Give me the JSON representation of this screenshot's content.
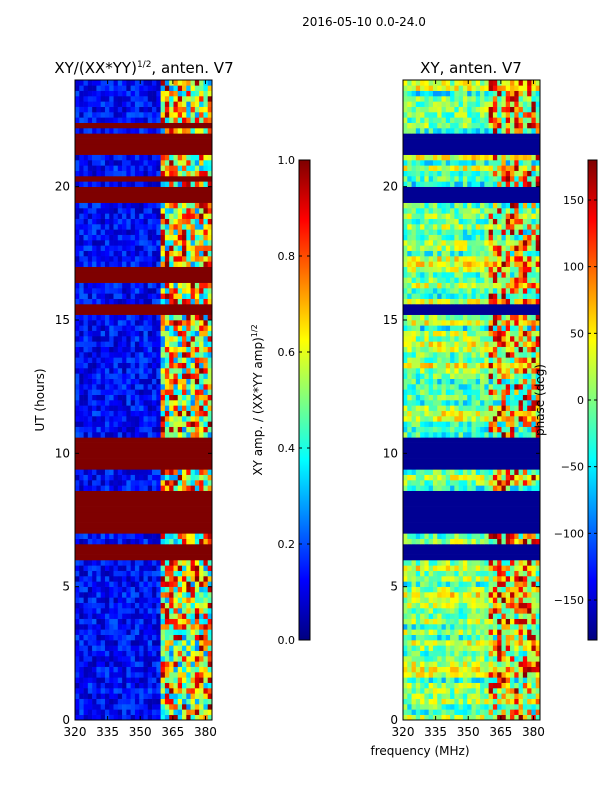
{
  "suptitle": "2016-05-10 0.0-24.0",
  "common_xlabel": "frequency (MHz)",
  "colors": {
    "jet": [
      "#00007f",
      "#0000ff",
      "#007fff",
      "#00ffff",
      "#7fff7f",
      "#ffff00",
      "#ff7f00",
      "#ff0000",
      "#7f0000"
    ],
    "frame": "#000000"
  },
  "chart_data": [
    {
      "type": "heatmap",
      "title_main": "XY/(XX*YY)",
      "title_sup": "1/2",
      "title_suffix": ", anten. V7",
      "xlabel": "",
      "ylabel": "UT (hours)",
      "xlim": [
        320,
        383
      ],
      "ylim": [
        0,
        24
      ],
      "xticks": [
        "320",
        "335",
        "350",
        "365",
        "380"
      ],
      "xtick_values": [
        320,
        335,
        350,
        365,
        380
      ],
      "yticks": [
        "0",
        "5",
        "10",
        "15",
        "20"
      ],
      "ytick_values": [
        0,
        5,
        10,
        15,
        20
      ],
      "signal_band_mhz": [
        360,
        383
      ],
      "saturated_hour_bands": [
        [
          6.1,
          6.6
        ],
        [
          7.0,
          8.7
        ],
        [
          9.5,
          10.6
        ],
        [
          15.2,
          15.7
        ],
        [
          16.4,
          17.0
        ],
        [
          19.5,
          20.0
        ],
        [
          20.3,
          20.5
        ],
        [
          21.3,
          22.0
        ],
        [
          22.3,
          22.5
        ]
      ],
      "colorbar": {
        "label_main": "XY amp. / (XX*YY amp)",
        "label_sup": "1/2",
        "min": 0.0,
        "max": 1.0,
        "ticks": [
          "0.0",
          "0.2",
          "0.4",
          "0.6",
          "0.8",
          "1.0"
        ],
        "tick_values": [
          0.0,
          0.2,
          0.4,
          0.6,
          0.8,
          1.0
        ]
      }
    },
    {
      "type": "heatmap",
      "title": "XY, anten. V7",
      "xlabel": "frequency (MHz)",
      "ylabel": "",
      "xlim": [
        320,
        383
      ],
      "ylim": [
        0,
        24
      ],
      "xticks": [
        "320",
        "335",
        "350",
        "365",
        "380"
      ],
      "xtick_values": [
        320,
        335,
        350,
        365,
        380
      ],
      "yticks": [
        "0",
        "5",
        "10",
        "15",
        "20"
      ],
      "ytick_values": [
        0,
        5,
        10,
        15,
        20
      ],
      "low_phase_hour_bands": [
        [
          6.1,
          6.6
        ],
        [
          7.0,
          8.7
        ],
        [
          9.5,
          10.6
        ],
        [
          15.2,
          15.7
        ],
        [
          19.5,
          20.0
        ],
        [
          21.3,
          22.0
        ]
      ],
      "colorbar": {
        "label": "phase (deg)",
        "min": -180,
        "max": 180,
        "ticks": [
          "−150",
          "−100",
          "−50",
          "0",
          "50",
          "100",
          "150"
        ],
        "tick_values": [
          -150,
          -100,
          -50,
          0,
          50,
          100,
          150
        ]
      }
    }
  ]
}
